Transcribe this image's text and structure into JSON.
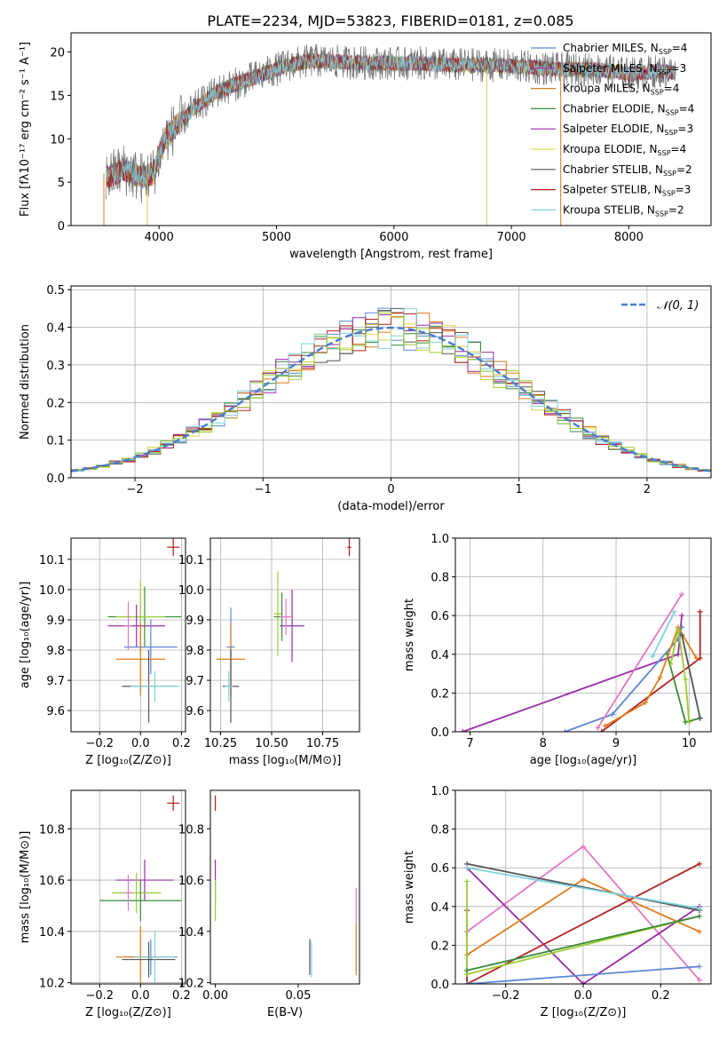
{
  "title": "PLATE=2234, MJD=53823, FIBERID=0181, z=0.085",
  "colors": {
    "axis": "#000000",
    "grid": "#b0b0b0",
    "normal_curve": "#4a7fd1",
    "series": [
      "#5b86d6",
      "#1f77b4",
      "#e07b1a",
      "#3a8a3a",
      "#9c2ca8",
      "#d8d24a",
      "#555555",
      "#b22222",
      "#7fd3e0",
      "#e377c2",
      "#9acd32"
    ]
  },
  "chart_data": [
    {
      "id": "spectrum",
      "type": "line",
      "xlabel": "wavelength [Angstrom, rest frame]",
      "ylabel": "Flux [fλ10⁻¹⁷ erg cm⁻² s⁻¹ A⁻¹]",
      "xlim": [
        3250,
        8700
      ],
      "ylim": [
        0,
        22.2
      ],
      "xticks": [
        4000,
        5000,
        6000,
        7000,
        8000
      ],
      "yticks": [
        0,
        5,
        10,
        15,
        20
      ],
      "grid": false,
      "legend_position": "top-right",
      "legend": [
        "Chabrier MILES, N_SSP=4",
        "Salpeter MILES, N_SSP=3",
        "Kroupa MILES, N_SSP=4",
        "Chabrier ELODIE, N_SSP=4",
        "Salpeter ELODIE, N_SSP=3",
        "Kroupa ELODIE, N_SSP=4",
        "Chabrier STELIB, N_SSP=2",
        "Salpeter STELIB, N_SSP=3",
        "Kroupa STELIB, N_SSP=2"
      ],
      "legend_colors": [
        "#5b86d6",
        "#9c2ca8",
        "#e07b1a",
        "#3a8a3a",
        "#9c2ca8",
        "#e2da55",
        "#555555",
        "#b22222",
        "#7fd3e0"
      ],
      "envelope": {
        "x": [
          3550,
          3700,
          3850,
          3950,
          4050,
          4150,
          4300,
          4500,
          4700,
          4900,
          5100,
          5300,
          5600,
          5900,
          6200,
          6500,
          6800,
          7100,
          7400,
          7700,
          8000,
          8300,
          8400
        ],
        "y": [
          5.5,
          6.5,
          5.5,
          6.0,
          10.0,
          11.5,
          13.5,
          15.5,
          16.5,
          17.5,
          18.5,
          19.0,
          18.8,
          18.7,
          18.7,
          18.5,
          18.5,
          18.3,
          18.0,
          18.0,
          17.5,
          17.8,
          17.5
        ]
      }
    },
    {
      "id": "residuals",
      "type": "histogram",
      "xlabel": "(data-model)/error",
      "ylabel": "Normed distribution",
      "xlim": [
        -2.5,
        2.5
      ],
      "ylim": [
        0,
        0.51
      ],
      "xticks": [
        -2,
        -1,
        0,
        1,
        2
      ],
      "yticks": [
        0.0,
        0.1,
        0.2,
        0.3,
        0.4,
        0.5
      ],
      "grid": true,
      "legend_position": "top-right",
      "legend": [
        "𝒩(0, 1)"
      ]
    },
    {
      "id": "age_vs_Z",
      "type": "scatter",
      "xlabel": "Z [log₁₀(Z/Z⊙)]",
      "ylabel": "age  [log₁₀(age/yr)]",
      "xlim": [
        -0.34,
        0.22
      ],
      "ylim": [
        9.53,
        10.17
      ],
      "xticks": [
        -0.2,
        0.0,
        0.2
      ],
      "yticks": [
        9.6,
        9.7,
        9.8,
        9.9,
        10.0,
        10.1
      ],
      "grid": true,
      "points": [
        {
          "x": 0.16,
          "y": 10.14,
          "xerr": 0.03,
          "yerr": 0.03,
          "color": "#b22222"
        },
        {
          "x": 0.02,
          "y": 9.91,
          "xerr": 0.18,
          "yerr": 0.1,
          "color": "#3a8a3a"
        },
        {
          "x": 0.0,
          "y": 9.91,
          "xerr": 0.12,
          "yerr": 0.12,
          "color": "#9acd32"
        },
        {
          "x": -0.02,
          "y": 9.88,
          "xerr": 0.14,
          "yerr": 0.07,
          "color": "#9c2ca8"
        },
        {
          "x": 0.05,
          "y": 9.81,
          "xerr": 0.13,
          "yerr": 0.09,
          "color": "#5b86d6"
        },
        {
          "x": 0.0,
          "y": 9.77,
          "xerr": 0.12,
          "yerr": 0.12,
          "color": "#e07b1a"
        },
        {
          "x": 0.04,
          "y": 9.68,
          "xerr": 0.13,
          "yerr": 0.12,
          "color": "#555555"
        },
        {
          "x": 0.07,
          "y": 9.68,
          "xerr": 0.12,
          "yerr": 0.05,
          "color": "#7fd3e0"
        },
        {
          "x": -0.06,
          "y": 9.88,
          "xerr": 0.02,
          "yerr": 0.08,
          "color": "#e377c2"
        }
      ]
    },
    {
      "id": "age_vs_mass",
      "type": "scatter",
      "xlabel": "mass [log₁₀(M/M⊙)]",
      "ylabel": "",
      "xlim": [
        10.2,
        10.93
      ],
      "ylim": [
        9.53,
        10.17
      ],
      "xticks": [
        10.25,
        10.5,
        10.75
      ],
      "yticks": [
        9.6,
        9.7,
        9.8,
        9.9,
        10.0,
        10.1
      ],
      "grid": true,
      "points": [
        {
          "x": 10.88,
          "y": 10.14,
          "xerr": 0.01,
          "yerr": 0.03,
          "color": "#b22222"
        },
        {
          "x": 10.53,
          "y": 9.92,
          "xerr": 0.02,
          "yerr": 0.14,
          "color": "#9acd32"
        },
        {
          "x": 10.55,
          "y": 9.91,
          "xerr": 0.04,
          "yerr": 0.08,
          "color": "#3a8a3a"
        },
        {
          "x": 10.6,
          "y": 9.88,
          "xerr": 0.06,
          "yerr": 0.12,
          "color": "#9c2ca8"
        },
        {
          "x": 10.57,
          "y": 9.91,
          "xerr": 0.03,
          "yerr": 0.06,
          "color": "#e377c2"
        },
        {
          "x": 10.3,
          "y": 9.81,
          "xerr": 0.02,
          "yerr": 0.13,
          "color": "#5b86d6"
        },
        {
          "x": 10.3,
          "y": 9.77,
          "xerr": 0.07,
          "yerr": 0.12,
          "color": "#e07b1a"
        },
        {
          "x": 10.3,
          "y": 9.68,
          "xerr": 0.04,
          "yerr": 0.12,
          "color": "#555555"
        },
        {
          "x": 10.29,
          "y": 9.68,
          "xerr": 0.02,
          "yerr": 0.05,
          "color": "#7fd3e0"
        }
      ]
    },
    {
      "id": "weight_vs_age",
      "type": "line",
      "xlabel": "age  [log₁₀(age/yr)]",
      "ylabel": "mass weight",
      "xlim": [
        6.8,
        10.3
      ],
      "ylim": [
        0,
        1.0
      ],
      "xticks": [
        7,
        8,
        9,
        10
      ],
      "yticks": [
        0.0,
        0.2,
        0.4,
        0.6,
        0.8,
        1.0
      ],
      "grid": true,
      "series": [
        {
          "color": "#9c2ca8",
          "x": [
            6.9,
            9.85,
            9.9
          ],
          "y": [
            0.0,
            0.4,
            0.6
          ]
        },
        {
          "color": "#5b86d6",
          "x": [
            8.3,
            8.95,
            9.85,
            9.9
          ],
          "y": [
            0.0,
            0.09,
            0.48,
            0.54
          ]
        },
        {
          "color": "#e377c2",
          "x": [
            8.75,
            9.9
          ],
          "y": [
            0.02,
            0.71
          ]
        },
        {
          "color": "#7fd3e0",
          "x": [
            9.5,
            9.8
          ],
          "y": [
            0.39,
            0.62
          ]
        },
        {
          "color": "#3a8a3a",
          "x": [
            9.7,
            9.95,
            10.15
          ],
          "y": [
            0.4,
            0.05,
            0.07
          ]
        },
        {
          "color": "#b22222",
          "x": [
            8.8,
            10.15,
            10.15
          ],
          "y": [
            0.0,
            0.38,
            0.62
          ]
        },
        {
          "color": "#e07b1a",
          "x": [
            8.85,
            9.4,
            9.6,
            9.85,
            10.1
          ],
          "y": [
            0.03,
            0.15,
            0.28,
            0.54,
            0.38
          ]
        },
        {
          "color": "#9acd32",
          "x": [
            9.75,
            9.85,
            9.95,
            10.0
          ],
          "y": [
            0.35,
            0.53,
            0.27,
            0.05
          ]
        },
        {
          "color": "#555555",
          "x": [
            9.9,
            10.15
          ],
          "y": [
            0.5,
            0.07
          ]
        }
      ]
    },
    {
      "id": "mass_vs_Z",
      "type": "scatter",
      "xlabel": "Z [log₁₀(Z/Z⊙)]",
      "ylabel": "mass [log₁₀(M/M⊙)]",
      "xlim": [
        -0.34,
        0.22
      ],
      "ylim": [
        10.195,
        10.95
      ],
      "xticks": [
        -0.2,
        0.0,
        0.2
      ],
      "yticks": [
        10.2,
        10.4,
        10.6,
        10.8
      ],
      "grid": true,
      "points": [
        {
          "x": 0.16,
          "y": 10.9,
          "xerr": 0.03,
          "yerr": 0.03,
          "color": "#b22222"
        },
        {
          "x": 0.02,
          "y": 10.6,
          "xerr": 0.14,
          "yerr": 0.08,
          "color": "#9c2ca8"
        },
        {
          "x": -0.02,
          "y": 10.55,
          "xerr": 0.12,
          "yerr": 0.08,
          "color": "#9acd32"
        },
        {
          "x": 0.0,
          "y": 10.52,
          "xerr": 0.2,
          "yerr": 0.08,
          "color": "#3a8a3a"
        },
        {
          "x": -0.06,
          "y": 10.55,
          "xerr": 0.02,
          "yerr": 0.07,
          "color": "#e377c2"
        },
        {
          "x": 0.05,
          "y": 10.3,
          "xerr": 0.13,
          "yerr": 0.07,
          "color": "#5b86d6"
        },
        {
          "x": 0.0,
          "y": 10.3,
          "xerr": 0.12,
          "yerr": 0.12,
          "color": "#e07b1a"
        },
        {
          "x": 0.04,
          "y": 10.29,
          "xerr": 0.13,
          "yerr": 0.07,
          "color": "#555555"
        },
        {
          "x": 0.07,
          "y": 10.3,
          "xerr": 0.1,
          "yerr": 0.1,
          "color": "#7fd3e0"
        }
      ]
    },
    {
      "id": "mass_vs_ebv",
      "type": "scatter",
      "xlabel": "E(B-V)",
      "ylabel": "",
      "xlim": [
        -0.003,
        0.087
      ],
      "ylim": [
        10.195,
        10.95
      ],
      "xticks": [
        0.0,
        0.05
      ],
      "yticks": [
        10.2,
        10.4,
        10.6,
        10.8
      ],
      "grid": false,
      "points": [
        {
          "x": 0.0,
          "y": 10.9,
          "xerr": 0,
          "yerr": 0.03,
          "color": "#b22222"
        },
        {
          "x": 0.0,
          "y": 10.6,
          "xerr": 0,
          "yerr": 0.08,
          "color": "#9c2ca8"
        },
        {
          "x": 0.0,
          "y": 10.52,
          "xerr": 0,
          "yerr": 0.08,
          "color": "#9acd32"
        },
        {
          "x": 0.057,
          "y": 10.3,
          "xerr": 0,
          "yerr": 0.07,
          "color": "#555555"
        },
        {
          "x": 0.058,
          "y": 10.29,
          "xerr": 0,
          "yerr": 0.07,
          "color": "#7fd3e0"
        },
        {
          "x": 0.085,
          "y": 10.5,
          "xerr": 0,
          "yerr": 0.07,
          "color": "#e377c2"
        },
        {
          "x": 0.085,
          "y": 10.33,
          "xerr": 0,
          "yerr": 0.1,
          "color": "#e07b1a"
        }
      ]
    },
    {
      "id": "weight_vs_Z",
      "type": "line",
      "xlabel": "Z [log₁₀(Z/Z⊙)]",
      "ylabel": "mass weight",
      "xlim": [
        -0.33,
        0.33
      ],
      "ylim": [
        0,
        1.0
      ],
      "xticks": [
        -0.2,
        0.0,
        0.2
      ],
      "yticks": [
        0.0,
        0.2,
        0.4,
        0.6,
        0.8,
        1.0
      ],
      "grid": true,
      "series": [
        {
          "color": "#e377c2",
          "x": [
            -0.3,
            0.0,
            0.3
          ],
          "y": [
            0.27,
            0.71,
            0.02
          ]
        },
        {
          "color": "#9c2ca8",
          "x": [
            -0.3,
            0.0,
            0.3
          ],
          "y": [
            0.6,
            0.0,
            0.4
          ]
        },
        {
          "color": "#e07b1a",
          "x": [
            -0.3,
            0.0,
            0.3
          ],
          "y": [
            0.15,
            0.54,
            0.27
          ]
        },
        {
          "color": "#b22222",
          "x": [
            -0.3,
            -0.3,
            0.3
          ],
          "y": [
            0.38,
            0.0,
            0.62
          ]
        },
        {
          "color": "#555555",
          "x": [
            -0.3,
            0.3
          ],
          "y": [
            0.62,
            0.38
          ]
        },
        {
          "color": "#7fd3e0",
          "x": [
            -0.3,
            0.3
          ],
          "y": [
            0.6,
            0.39
          ]
        },
        {
          "color": "#5b86d6",
          "x": [
            -0.3,
            0.3
          ],
          "y": [
            0.0,
            0.09
          ]
        },
        {
          "color": "#9acd32",
          "x": [
            -0.3,
            -0.3,
            0.3
          ],
          "y": [
            0.53,
            0.05,
            0.35
          ]
        },
        {
          "color": "#3a8a3a",
          "x": [
            -0.3,
            0.3
          ],
          "y": [
            0.07,
            0.35
          ]
        }
      ]
    }
  ]
}
